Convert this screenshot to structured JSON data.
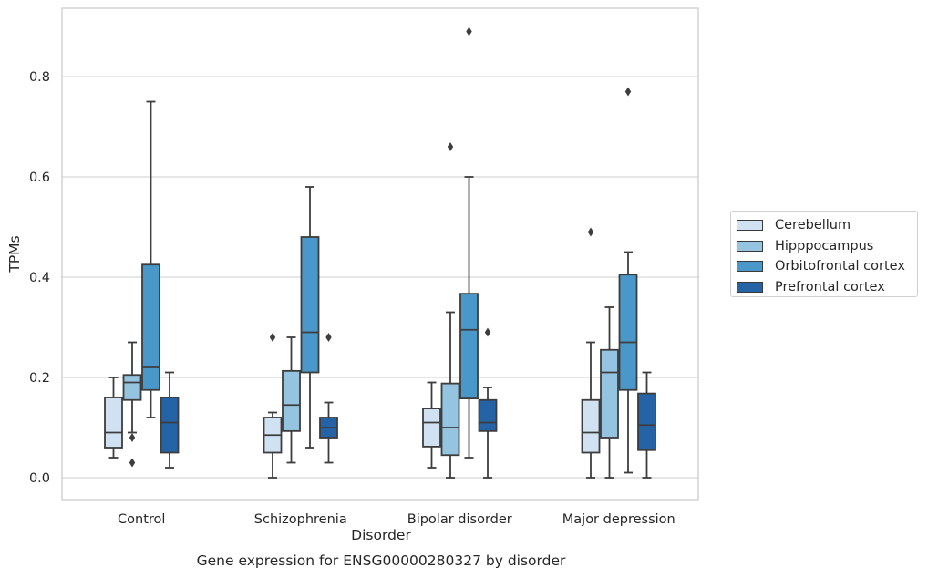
{
  "chart_data": {
    "type": "box",
    "xlabel": "Disorder",
    "ylabel": "TPMs",
    "caption": "Gene expression for ENSG00000280327 by disorder",
    "categories": [
      "Control",
      "Schizophrenia",
      "Bipolar disorder",
      "Major depression"
    ],
    "ylim": [
      -0.04,
      0.94
    ],
    "yticks": [
      0.0,
      0.2,
      0.4,
      0.6,
      0.8
    ],
    "ytick_labels": [
      "0.0",
      "0.2",
      "0.4",
      "0.6",
      "0.8"
    ],
    "grid": "horizontal",
    "legend_position": "right",
    "series": [
      {
        "name": "Cerebellum",
        "color": "#d0e1f2",
        "boxes": [
          {
            "whisker_low": 0.04,
            "q1": 0.06,
            "median": 0.09,
            "q3": 0.16,
            "whisker_high": 0.2,
            "outliers": []
          },
          {
            "whisker_low": 0.0,
            "q1": 0.05,
            "median": 0.085,
            "q3": 0.12,
            "whisker_high": 0.13,
            "outliers": [
              0.28
            ]
          },
          {
            "whisker_low": 0.02,
            "q1": 0.062,
            "median": 0.11,
            "q3": 0.138,
            "whisker_high": 0.19,
            "outliers": []
          },
          {
            "whisker_low": 0.0,
            "q1": 0.05,
            "median": 0.09,
            "q3": 0.155,
            "whisker_high": 0.27,
            "outliers": [
              0.49
            ]
          }
        ]
      },
      {
        "name": "Hipppocampus",
        "color": "#94c4df",
        "boxes": [
          {
            "whisker_low": 0.09,
            "q1": 0.155,
            "median": 0.19,
            "q3": 0.205,
            "whisker_high": 0.27,
            "outliers": [
              0.08,
              0.03
            ]
          },
          {
            "whisker_low": 0.03,
            "q1": 0.093,
            "median": 0.145,
            "q3": 0.213,
            "whisker_high": 0.28,
            "outliers": []
          },
          {
            "whisker_low": 0.0,
            "q1": 0.045,
            "median": 0.1,
            "q3": 0.188,
            "whisker_high": 0.33,
            "outliers": [
              0.66
            ]
          },
          {
            "whisker_low": 0.0,
            "q1": 0.08,
            "median": 0.21,
            "q3": 0.255,
            "whisker_high": 0.34,
            "outliers": []
          }
        ]
      },
      {
        "name": "Orbitofrontal cortex",
        "color": "#4a98c9",
        "boxes": [
          {
            "whisker_low": 0.12,
            "q1": 0.175,
            "median": 0.22,
            "q3": 0.425,
            "whisker_high": 0.75,
            "outliers": []
          },
          {
            "whisker_low": 0.06,
            "q1": 0.21,
            "median": 0.29,
            "q3": 0.48,
            "whisker_high": 0.58,
            "outliers": []
          },
          {
            "whisker_low": 0.04,
            "q1": 0.158,
            "median": 0.295,
            "q3": 0.367,
            "whisker_high": 0.6,
            "outliers": [
              0.89
            ]
          },
          {
            "whisker_low": 0.01,
            "q1": 0.175,
            "median": 0.27,
            "q3": 0.405,
            "whisker_high": 0.45,
            "outliers": [
              0.77
            ]
          }
        ]
      },
      {
        "name": "Prefrontal cortex",
        "color": "#2363a6",
        "boxes": [
          {
            "whisker_low": 0.02,
            "q1": 0.05,
            "median": 0.11,
            "q3": 0.16,
            "whisker_high": 0.21,
            "outliers": []
          },
          {
            "whisker_low": 0.03,
            "q1": 0.08,
            "median": 0.1,
            "q3": 0.12,
            "whisker_high": 0.15,
            "outliers": [
              0.28
            ]
          },
          {
            "whisker_low": 0.0,
            "q1": 0.093,
            "median": 0.11,
            "q3": 0.155,
            "whisker_high": 0.18,
            "outliers": [
              0.29
            ]
          },
          {
            "whisker_low": 0.0,
            "q1": 0.055,
            "median": 0.105,
            "q3": 0.168,
            "whisker_high": 0.21,
            "outliers": []
          }
        ]
      }
    ]
  }
}
